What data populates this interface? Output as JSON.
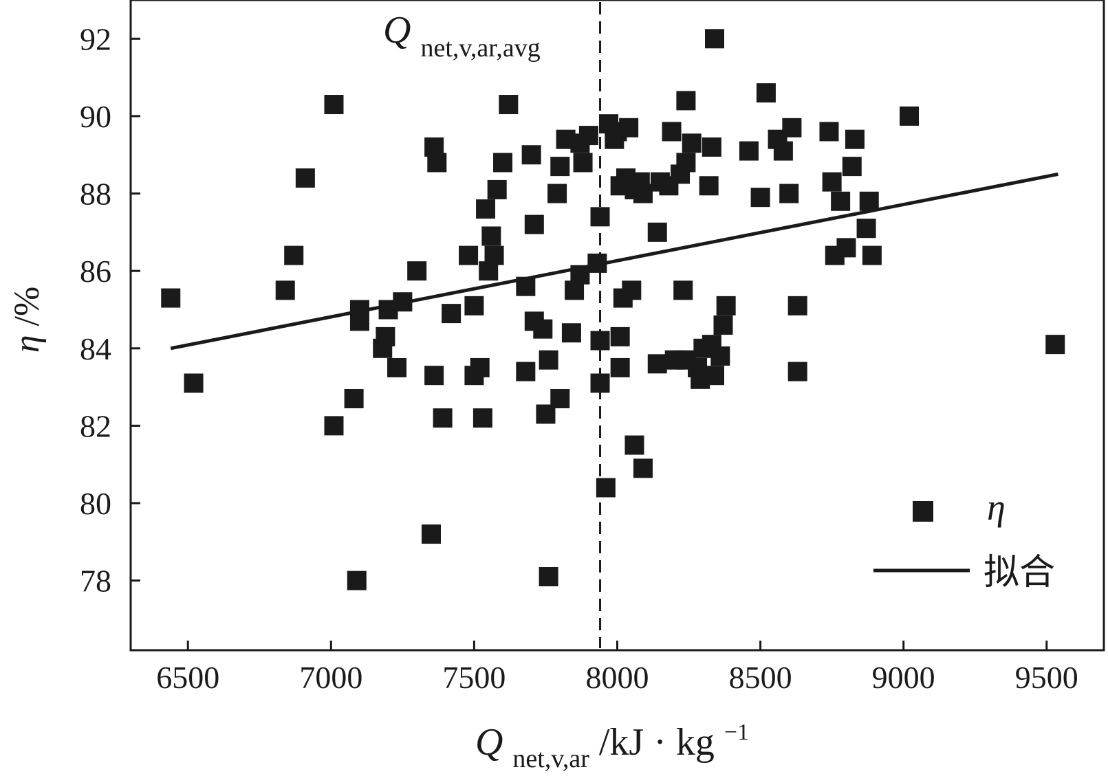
{
  "chart_data": {
    "type": "scatter",
    "xlim": [
      6300,
      9700
    ],
    "ylim": [
      76.2,
      93
    ],
    "x_ticks": [
      6500,
      7000,
      7500,
      8000,
      8500,
      9000,
      9500
    ],
    "y_ticks": [
      78,
      80,
      82,
      84,
      86,
      88,
      90,
      92
    ],
    "xlabel": {
      "symbol": "Q",
      "subscript": "net,v,ar",
      "unit": "/kJ · kg",
      "superscript": "−1"
    },
    "ylabel": {
      "symbol": "η",
      "unit": "/%"
    },
    "reference_line": {
      "x": 7940,
      "style": "dashed",
      "label_symbol": "Q",
      "label_subscript": "net,v,ar,avg"
    },
    "fit_line": {
      "name": "拟合",
      "x": [
        6440,
        9540
      ],
      "y": [
        84.0,
        88.5
      ]
    },
    "legend": {
      "position": "lower-right",
      "entries": [
        {
          "label": "η",
          "marker": "square"
        },
        {
          "label": "拟合",
          "marker": "line"
        }
      ]
    },
    "colors": {
      "marker": "#1a1a1a",
      "line": "#1a1a1a"
    },
    "series": [
      {
        "name": "η",
        "points": [
          [
            6440,
            85.3
          ],
          [
            6520,
            83.1
          ],
          [
            6840,
            85.5
          ],
          [
            6870,
            86.4
          ],
          [
            6910,
            88.4
          ],
          [
            7010,
            90.3
          ],
          [
            7010,
            82.0
          ],
          [
            7080,
            82.7
          ],
          [
            7100,
            85.0
          ],
          [
            7100,
            84.7
          ],
          [
            7090,
            78.0
          ],
          [
            7180,
            84.0
          ],
          [
            7190,
            84.3
          ],
          [
            7200,
            85.0
          ],
          [
            7230,
            83.5
          ],
          [
            7250,
            85.2
          ],
          [
            7300,
            86.0
          ],
          [
            7360,
            89.2
          ],
          [
            7370,
            88.8
          ],
          [
            7360,
            83.3
          ],
          [
            7390,
            82.2
          ],
          [
            7420,
            84.9
          ],
          [
            7350,
            79.2
          ],
          [
            7480,
            86.4
          ],
          [
            7500,
            85.1
          ],
          [
            7500,
            83.3
          ],
          [
            7520,
            83.5
          ],
          [
            7530,
            82.2
          ],
          [
            7540,
            87.6
          ],
          [
            7550,
            86.0
          ],
          [
            7560,
            86.9
          ],
          [
            7570,
            86.4
          ],
          [
            7580,
            88.1
          ],
          [
            7600,
            88.8
          ],
          [
            7620,
            90.3
          ],
          [
            7680,
            85.6
          ],
          [
            7680,
            83.4
          ],
          [
            7700,
            89.0
          ],
          [
            7710,
            87.2
          ],
          [
            7710,
            84.7
          ],
          [
            7740,
            84.5
          ],
          [
            7760,
            83.7
          ],
          [
            7750,
            82.3
          ],
          [
            7760,
            78.1
          ],
          [
            7790,
            88.0
          ],
          [
            7800,
            88.7
          ],
          [
            7800,
            82.7
          ],
          [
            7820,
            89.4
          ],
          [
            7840,
            84.4
          ],
          [
            7850,
            85.5
          ],
          [
            7870,
            85.9
          ],
          [
            7870,
            89.3
          ],
          [
            7880,
            88.8
          ],
          [
            7900,
            89.5
          ],
          [
            7930,
            86.2
          ],
          [
            7940,
            87.4
          ],
          [
            7940,
            84.2
          ],
          [
            7940,
            83.1
          ],
          [
            7960,
            80.4
          ],
          [
            7970,
            89.8
          ],
          [
            7990,
            89.4
          ],
          [
            8000,
            89.6
          ],
          [
            8010,
            88.2
          ],
          [
            8010,
            83.5
          ],
          [
            8010,
            84.3
          ],
          [
            8020,
            85.3
          ],
          [
            8030,
            88.4
          ],
          [
            8040,
            89.7
          ],
          [
            8050,
            85.5
          ],
          [
            8060,
            88.1
          ],
          [
            8060,
            81.5
          ],
          [
            8080,
            88.3
          ],
          [
            8090,
            88.0
          ],
          [
            8090,
            80.9
          ],
          [
            8150,
            88.3
          ],
          [
            8140,
            87.0
          ],
          [
            8140,
            83.6
          ],
          [
            8180,
            88.2
          ],
          [
            8190,
            89.6
          ],
          [
            8200,
            83.7
          ],
          [
            8220,
            88.5
          ],
          [
            8240,
            88.8
          ],
          [
            8230,
            85.5
          ],
          [
            8240,
            90.4
          ],
          [
            8240,
            83.7
          ],
          [
            8260,
            89.3
          ],
          [
            8280,
            83.5
          ],
          [
            8290,
            83.2
          ],
          [
            8300,
            84.0
          ],
          [
            8320,
            88.2
          ],
          [
            8330,
            89.2
          ],
          [
            8330,
            84.1
          ],
          [
            8340,
            92.0
          ],
          [
            8340,
            83.3
          ],
          [
            8360,
            83.8
          ],
          [
            8370,
            84.6
          ],
          [
            8380,
            85.1
          ],
          [
            8460,
            89.1
          ],
          [
            8500,
            87.9
          ],
          [
            8520,
            90.6
          ],
          [
            8560,
            89.4
          ],
          [
            8580,
            89.1
          ],
          [
            8600,
            88.0
          ],
          [
            8610,
            89.7
          ],
          [
            8630,
            85.1
          ],
          [
            8630,
            83.4
          ],
          [
            8740,
            89.6
          ],
          [
            8750,
            88.3
          ],
          [
            8760,
            86.4
          ],
          [
            8780,
            87.8
          ],
          [
            8800,
            86.6
          ],
          [
            8820,
            88.7
          ],
          [
            8830,
            89.4
          ],
          [
            8870,
            87.1
          ],
          [
            8880,
            87.8
          ],
          [
            8890,
            86.4
          ],
          [
            9020,
            90.0
          ],
          [
            9530,
            84.1
          ]
        ]
      }
    ]
  }
}
